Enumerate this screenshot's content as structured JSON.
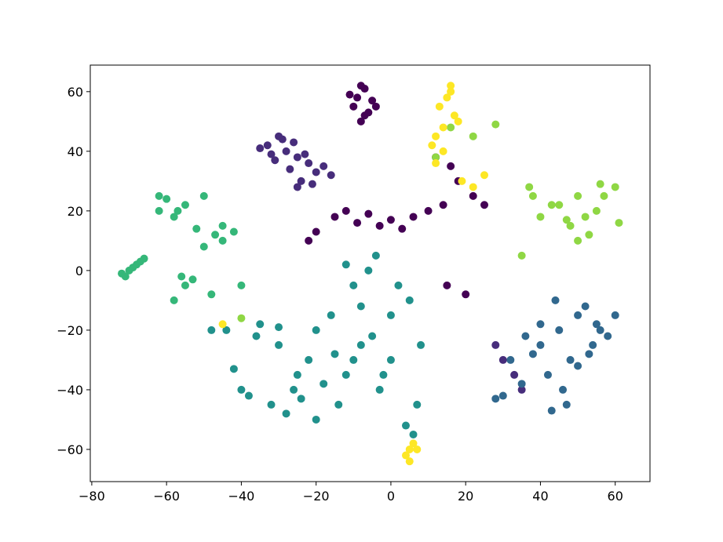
{
  "chart_data": {
    "type": "scatter",
    "xlim": [
      -80.4,
      69.3
    ],
    "ylim": [
      -70.8,
      68.9
    ],
    "xticks": [
      {
        "value": -80,
        "label": "−80"
      },
      {
        "value": -60,
        "label": "−60"
      },
      {
        "value": -40,
        "label": "−40"
      },
      {
        "value": -20,
        "label": "−20"
      },
      0,
      20,
      40,
      60
    ],
    "yticks": [
      {
        "value": -60,
        "label": "−60"
      },
      {
        "value": -40,
        "label": "−40"
      },
      {
        "value": -20,
        "label": "−20"
      },
      0,
      20,
      40,
      60
    ],
    "series": [
      {
        "color": "#440154",
        "x": [
          -9,
          -7,
          -10,
          -6,
          -8,
          -5,
          -11,
          -7,
          -4,
          -8,
          -15,
          -12,
          -9,
          -6,
          -3,
          0,
          3,
          6,
          10,
          14,
          12,
          18,
          22,
          16,
          25,
          15,
          20,
          -20,
          -22
        ],
        "y": [
          58,
          61,
          55,
          53,
          50,
          57,
          59,
          52,
          55,
          62,
          18,
          20,
          16,
          19,
          15,
          17,
          14,
          18,
          20,
          22,
          38,
          30,
          25,
          35,
          22,
          -5,
          -8,
          13,
          10
        ]
      },
      {
        "color": "#472d7b",
        "x": [
          -33,
          -30,
          -28,
          -25,
          -22,
          -20,
          -31,
          -27,
          -24,
          -18,
          -35,
          -29,
          -26,
          -23,
          -21,
          -16,
          -32,
          -25,
          30,
          33,
          28,
          35
        ],
        "y": [
          42,
          45,
          40,
          38,
          36,
          33,
          37,
          34,
          30,
          35,
          41,
          44,
          43,
          39,
          29,
          32,
          39,
          28,
          -30,
          -35,
          -25,
          -40
        ]
      },
      {
        "color": "#31688e",
        "x": [
          45,
          50,
          55,
          40,
          48,
          52,
          58,
          42,
          38,
          46,
          54,
          60,
          35,
          30,
          44,
          50,
          56,
          40,
          32,
          28,
          47,
          53,
          36,
          43
        ],
        "y": [
          -20,
          -15,
          -18,
          -25,
          -30,
          -12,
          -22,
          -35,
          -28,
          -40,
          -25,
          -15,
          -38,
          -42,
          -10,
          -32,
          -20,
          -18,
          -30,
          -43,
          -45,
          -28,
          -22,
          -47
        ]
      },
      {
        "color": "#21918c",
        "x": [
          -40,
          -35,
          -30,
          -25,
          -20,
          -15,
          -10,
          -5,
          0,
          5,
          -38,
          -32,
          -28,
          -22,
          -18,
          -12,
          -8,
          -3,
          2,
          7,
          -42,
          -36,
          -30,
          -26,
          -14,
          -10,
          -6,
          -2,
          4,
          8,
          -20,
          -24,
          -16,
          -4,
          6,
          -44,
          -48,
          -8,
          -12,
          0
        ],
        "y": [
          -40,
          -18,
          -25,
          -35,
          -20,
          -28,
          -30,
          -22,
          -15,
          -10,
          -42,
          -45,
          -48,
          -30,
          -38,
          -35,
          -25,
          -40,
          -5,
          -45,
          -33,
          -22,
          -19,
          -40,
          -45,
          -5,
          0,
          -35,
          -52,
          -25,
          -50,
          -43,
          -15,
          5,
          -55,
          -20,
          -20,
          -12,
          2,
          -30
        ]
      },
      {
        "color": "#35b779",
        "x": [
          -70,
          -68,
          -72,
          -67,
          -69,
          -66,
          -71,
          -60,
          -57,
          -55,
          -62,
          -58,
          -52,
          -47,
          -45,
          -50,
          -42,
          -55,
          -48,
          -53,
          -58,
          -50,
          -45,
          -40,
          -56,
          -62
        ],
        "y": [
          0,
          2,
          -1,
          3,
          1,
          4,
          -2,
          24,
          20,
          22,
          25,
          18,
          14,
          12,
          10,
          8,
          13,
          -5,
          -8,
          -3,
          -10,
          25,
          15,
          -5,
          -2,
          20
        ]
      },
      {
        "color": "#8fd744",
        "x": [
          45,
          50,
          55,
          60,
          40,
          48,
          52,
          57,
          38,
          43,
          53,
          61,
          37,
          50,
          56,
          47,
          35,
          16,
          22,
          28,
          12,
          -40
        ],
        "y": [
          22,
          25,
          20,
          28,
          18,
          15,
          18,
          25,
          25,
          22,
          12,
          16,
          28,
          10,
          29,
          17,
          5,
          48,
          45,
          49,
          38,
          -16
        ]
      },
      {
        "color": "#fde725",
        "x": [
          13,
          15,
          17,
          14,
          12,
          16,
          18,
          11,
          14,
          16,
          19,
          12,
          5,
          6,
          4,
          7,
          5,
          22,
          25,
          -45
        ],
        "y": [
          55,
          58,
          52,
          48,
          45,
          60,
          50,
          42,
          40,
          62,
          30,
          36,
          -60,
          -58,
          -62,
          -60,
          -64,
          28,
          32,
          -18
        ]
      }
    ]
  }
}
